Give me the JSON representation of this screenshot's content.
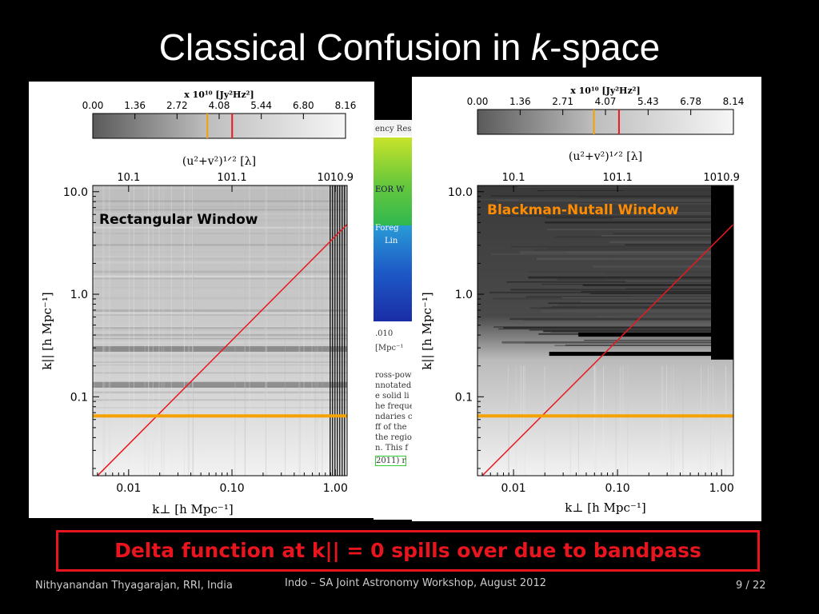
{
  "slide": {
    "title_prefix": "Classical Confusion in ",
    "title_italic": "k",
    "title_suffix": "-space",
    "caption": "Delta function at k|| = 0 spills over due to bandpass",
    "footer_left": "Nithyanandan Thyagarajan, RRI, India",
    "footer_center": "Indo – SA Joint Astronomy Workshop, August 2012",
    "page_current": "9",
    "page_sep": " / ",
    "page_total": "22"
  },
  "strip": {
    "lines": [
      "ency Res",
      "EOR W",
      "Foreg",
      "Lin",
      ".010",
      "[Mpc⁻¹",
      "ross-powe",
      "nnotated",
      "e solid li",
      "he freque",
      "ndaries c",
      "ff of the",
      "the regio",
      "n. This f",
      "2011) r"
    ]
  },
  "colors": {
    "red_line": "#e8191e",
    "orange_line": "#f5a100",
    "orange_label": "#ff8c00",
    "caption_red": "#e8141e"
  },
  "chart_data": [
    {
      "type": "heatmap",
      "window_label": "Rectangular Window",
      "colorbar_label": "x 10¹⁰ [Jy²Hz²]",
      "colorbar_ticks": [
        "0.00",
        "1.36",
        "2.72",
        "4.08",
        "5.44",
        "6.80",
        "8.16"
      ],
      "colorbar_range": [
        0,
        8.16
      ],
      "colorbar_orange_marker": 3.7,
      "colorbar_red_marker": 4.5,
      "top_axis_label": "(u²+v²)¹ᐟ² [λ]",
      "top_axis_ticks": [
        "10.1",
        "101.1",
        "1010.9"
      ],
      "xlabel": "k⊥ [h Mpc⁻¹]",
      "ylabel": "k|| [h Mpc⁻¹]",
      "x_ticks": [
        "0.01",
        "0.10",
        "1.00"
      ],
      "y_ticks": [
        "10.0",
        "1.0",
        "0.1"
      ],
      "xlim": [
        0.0045,
        1.3
      ],
      "ylim": [
        0.017,
        11.5
      ],
      "xscale": "log",
      "yscale": "log",
      "red_line": {
        "x": [
          0.005,
          1.3
        ],
        "y": [
          0.017,
          4.8
        ]
      },
      "orange_line_y": 0.065
    },
    {
      "type": "heatmap",
      "window_label": "Blackman-Nutall Window",
      "colorbar_label": "x 10¹⁰ [Jy²Hz²]",
      "colorbar_ticks": [
        "0.00",
        "1.36",
        "2.71",
        "4.07",
        "5.43",
        "6.78",
        "8.14"
      ],
      "colorbar_range": [
        0,
        8.14
      ],
      "colorbar_orange_marker": 3.7,
      "colorbar_red_marker": 4.5,
      "top_axis_label": "(u²+v²)¹ᐟ² [λ]",
      "top_axis_ticks": [
        "10.1",
        "101.1",
        "1010.9"
      ],
      "xlabel": "k⊥ [h Mpc⁻¹]",
      "ylabel": "k|| [h Mpc⁻¹]",
      "x_ticks": [
        "0.01",
        "0.10",
        "1.00"
      ],
      "y_ticks": [
        "10.0",
        "1.0",
        "0.1"
      ],
      "xlim": [
        0.0045,
        1.3
      ],
      "ylim": [
        0.017,
        11.5
      ],
      "xscale": "log",
      "yscale": "log",
      "red_line": {
        "x": [
          0.005,
          1.3
        ],
        "y": [
          0.017,
          4.8
        ]
      },
      "orange_line_y": 0.065
    }
  ]
}
